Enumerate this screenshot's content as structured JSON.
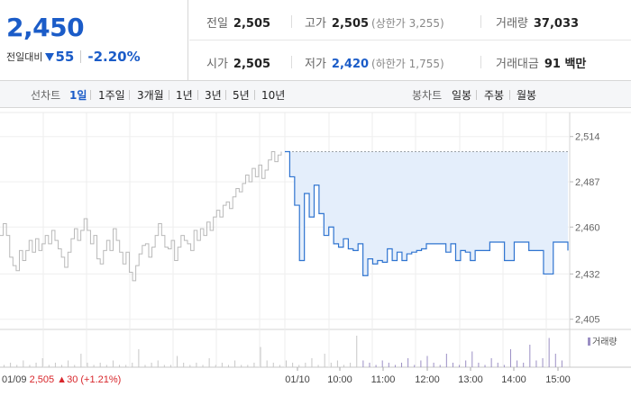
{
  "summary": {
    "price": "2,450",
    "change_label": "전일대비",
    "change_icon": "down-triangle-icon",
    "change_value": "55",
    "change_percent": "-2.20%",
    "prev_close": {
      "label": "전일",
      "value": "2,505"
    },
    "high": {
      "label": "고가",
      "value": "2,505",
      "limit": "(상한가 3,255)"
    },
    "volume": {
      "label": "거래량",
      "value": "37,033"
    },
    "open": {
      "label": "시가",
      "value": "2,505"
    },
    "low": {
      "label": "저가",
      "value": "2,420",
      "limit": "(하한가 1,755)"
    },
    "trade_value": {
      "label": "거래대금",
      "value": "91 백만"
    }
  },
  "tabs": {
    "line_label": "선차트",
    "line_tabs": [
      "1일",
      "1주일",
      "3개월",
      "1년",
      "3년",
      "5년",
      "10년"
    ],
    "line_active": 0,
    "candle_label": "봉차트",
    "candle_tabs": [
      "일봉",
      "주봉",
      "월봉"
    ]
  },
  "colors": {
    "accent_blue": "#1b5cc8",
    "down_blue": "#1b5cc8",
    "up_red": "#d8262b",
    "line_today": "#2f74d0",
    "fill_today": "#e4eefb",
    "line_prev": "#b9b9b9",
    "volume_bar": "#9b8fc4"
  },
  "chart_data": {
    "type": "line",
    "ylim": [
      2400,
      2516
    ],
    "y_ticks": [
      "2,514",
      "2,487",
      "2,460",
      "2,432",
      "2,405"
    ],
    "y_tick_values": [
      2514,
      2487,
      2460,
      2432,
      2405
    ],
    "x_ticks": [
      "01/10",
      "10:00",
      "11:00",
      "12:00",
      "13:00",
      "14:00",
      "15:00"
    ],
    "prev_day_label": "01/09",
    "prev_day_close": "2,505",
    "prev_day_change": "30",
    "prev_day_change_pct": "(+1.21%)",
    "reference_price": 2505,
    "legend": "거래량",
    "series": [
      {
        "values_prev": [
          2455,
          2462,
          2455,
          2442,
          2437,
          2434,
          2446,
          2440,
          2446,
          2452,
          2445,
          2453,
          2446,
          2450,
          2455,
          2450,
          2458,
          2452,
          2447,
          2442,
          2436,
          2445,
          2453,
          2459,
          2452,
          2458,
          2465,
          2458,
          2450,
          2455,
          2441,
          2438,
          2446,
          2452,
          2446,
          2459,
          2452,
          2445,
          2438,
          2445,
          2433,
          2428,
          2437,
          2444,
          2449,
          2450,
          2442,
          2448,
          2455,
          2462,
          2455,
          2448,
          2447,
          2452,
          2440,
          2448,
          2455,
          2452,
          2450,
          2446,
          2458,
          2452,
          2459,
          2455,
          2463,
          2458,
          2466,
          2470,
          2466,
          2473,
          2475,
          2471,
          2478,
          2483,
          2481,
          2486,
          2491,
          2487,
          2495,
          2490,
          2497,
          2489,
          2494,
          2500,
          2505,
          2499,
          2503,
          2505
        ]
      },
      {
        "values_today": [
          2505,
          2490,
          2473,
          2440,
          2480,
          2466,
          2485,
          2468,
          2455,
          2460,
          2450,
          2448,
          2453,
          2447,
          2446,
          2450,
          2431,
          2441,
          2438,
          2440,
          2439,
          2447,
          2440,
          2445,
          2440,
          2444,
          2445,
          2446,
          2447,
          2450,
          2450,
          2450,
          2450,
          2445,
          2450,
          2440,
          2446,
          2445,
          2440,
          2446,
          2446,
          2446,
          2451,
          2451,
          2451,
          2440,
          2440,
          2451,
          2451,
          2451,
          2446,
          2446,
          2446,
          2432,
          2432,
          2451,
          2451,
          2451,
          2446
        ]
      }
    ],
    "volume": [
      1,
      2,
      1,
      3,
      1,
      2,
      4,
      1,
      2,
      1,
      3,
      1,
      6,
      2,
      1,
      2,
      1,
      3,
      1,
      1,
      2,
      8,
      1,
      2,
      3,
      1,
      1,
      5,
      2,
      1,
      2,
      1,
      4,
      1,
      2,
      1,
      3,
      1,
      1,
      2,
      9,
      3,
      2,
      1,
      3,
      2,
      1,
      2,
      4,
      1,
      6,
      2,
      3,
      1,
      2,
      14,
      3,
      2,
      1,
      3,
      2,
      1,
      2,
      4,
      1,
      3,
      5,
      2,
      1,
      6,
      2,
      1,
      3,
      7,
      2,
      1,
      4,
      2,
      1,
      8,
      3,
      2,
      10,
      3,
      4,
      13,
      6,
      3
    ]
  }
}
